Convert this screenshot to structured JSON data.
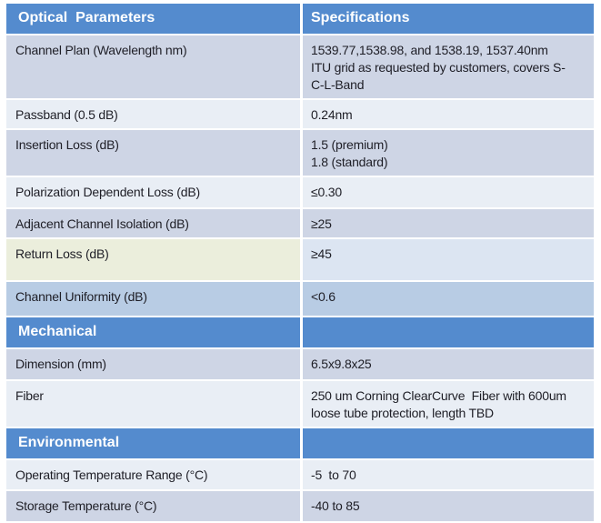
{
  "colors": {
    "header_blue": "#548BCE",
    "band_dark": "#CED5E5",
    "band_light": "#E9EEF5",
    "return_param_bg": "#EBEEDC",
    "return_spec_bg": "#DCE5F2",
    "uniformity_bg": "#B8CCE4",
    "divider_white": "#FFFFFF",
    "text_dark": "#1E1E26",
    "header_text": "#FFFFFF"
  },
  "header": {
    "col1": "Optical  Parameters",
    "col2": "Specifications"
  },
  "optical_rows": [
    {
      "param": "Channel Plan (Wavelength nm)",
      "spec": "1539.77,1538.98, and 1538.19, 1537.40nm\nITU grid as requested by customers, covers S-\nC-L-Band"
    },
    {
      "param": "Passband (0.5 dB)",
      "spec": "0.24nm"
    },
    {
      "param": "Insertion Loss (dB)",
      "spec": "1.5 (premium)\n1.8 (standard)"
    },
    {
      "param": "Polarization Dependent Loss (dB)",
      "spec": "≤0.30"
    },
    {
      "param": "Adjacent Channel Isolation (dB)",
      "spec": "≥25"
    },
    {
      "param": "Return Loss (dB)",
      "spec": "≥45"
    },
    {
      "param": "Channel Uniformity (dB)",
      "spec": "<0.6"
    }
  ],
  "mechanical": {
    "title": "Mechanical",
    "rows": [
      {
        "param": "Dimension (mm)",
        "spec": "6.5x9.8x25"
      },
      {
        "param": "Fiber",
        "spec": "250 um Corning ClearCurve  Fiber with 600um\nloose tube protection, length TBD"
      }
    ]
  },
  "environmental": {
    "title": "Environmental",
    "rows": [
      {
        "param": "Operating Temperature Range (°C)",
        "spec": "-5  to 70"
      },
      {
        "param": "Storage Temperature (°C)",
        "spec": "-40 to 85"
      }
    ]
  }
}
